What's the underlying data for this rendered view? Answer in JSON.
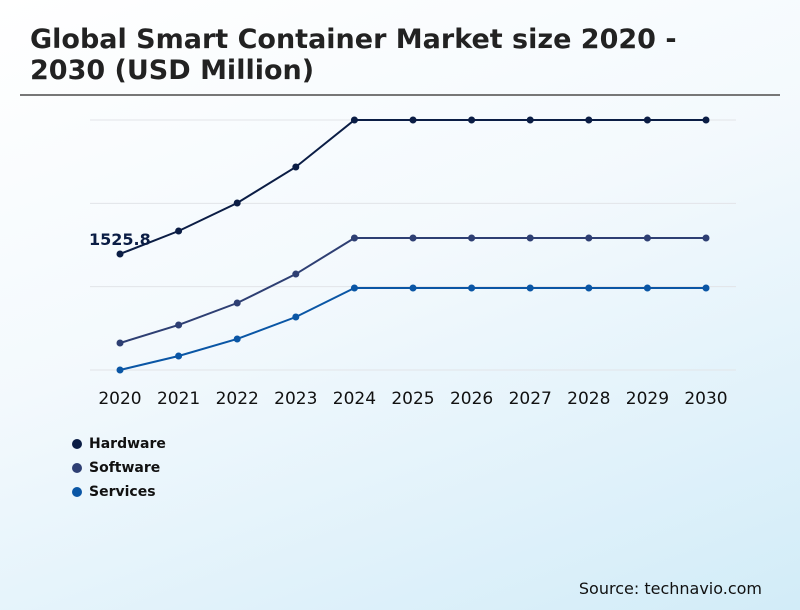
{
  "chart_data": {
    "type": "line",
    "title": "Global Smart Container Market size 2020 - 2030 (USD Million)",
    "x": [
      "2020",
      "2021",
      "2022",
      "2023",
      "2024",
      "2025",
      "2026",
      "2027",
      "2028",
      "2029",
      "2030"
    ],
    "series": [
      {
        "name": "Hardware",
        "color": "#0b1d45",
        "values": [
          1525.8,
          1828,
          2196,
          2670,
          3288,
          3288,
          3288,
          3288,
          3288,
          3288,
          3288
        ]
      },
      {
        "name": "Software",
        "color": "#2e3f73",
        "values": [
          355,
          592,
          881,
          1262,
          1736,
          1736,
          1736,
          1736,
          1736,
          1736,
          1736
        ]
      },
      {
        "name": "Services",
        "color": "#0a56a5",
        "values": [
          0,
          184,
          408,
          697,
          1078,
          1078,
          1078,
          1078,
          1078,
          1078,
          1078
        ]
      }
    ],
    "annotations": [
      "1525.8"
    ],
    "ylim": [
      0,
      3288
    ],
    "grid": true,
    "legend": "bottom-left"
  },
  "source": "Source: technavio.com"
}
